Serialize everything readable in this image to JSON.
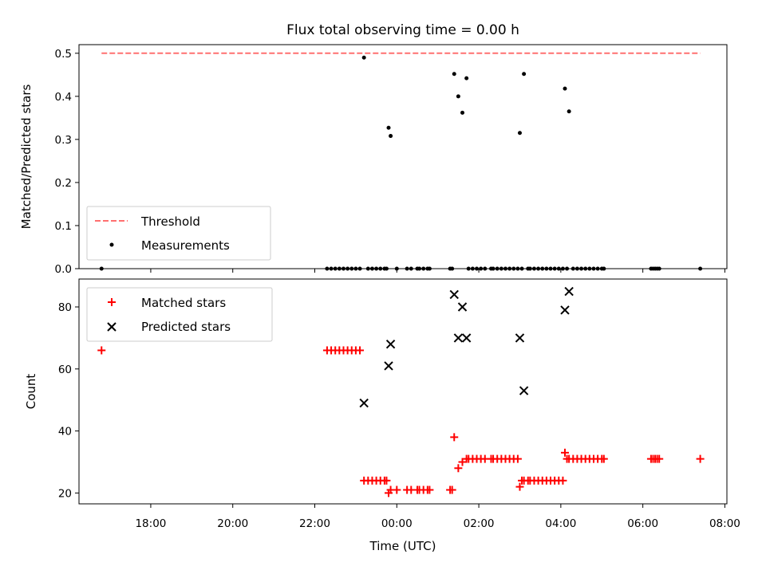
{
  "chart_data": [
    {
      "type": "scatter",
      "title": "Flux total observing time = 0.00 h",
      "xlabel": "",
      "ylabel": "Matched/Predicted stars",
      "xlim": [
        16.25,
        32.05
      ],
      "ylim": [
        0,
        0.52
      ],
      "yticks": [
        0.0,
        0.1,
        0.2,
        0.3,
        0.4,
        0.5
      ],
      "ytick_labels": [
        "0.0",
        "0.1",
        "0.2",
        "0.3",
        "0.4",
        "0.5"
      ],
      "legend_location": "lower left",
      "threshold": {
        "name": "Threshold",
        "color": "#ff7070",
        "x": [
          16.8,
          31.4
        ],
        "y": 0.5
      },
      "series": [
        {
          "name": "Measurements",
          "color": "#000000",
          "marker": "dot",
          "x": [
            16.8,
            22.3,
            22.4,
            22.5,
            22.6,
            22.7,
            22.8,
            22.9,
            23.0,
            23.1,
            23.2,
            23.3,
            23.4,
            23.5,
            23.6,
            23.7,
            23.75,
            23.8,
            23.85,
            24.0,
            24.25,
            24.35,
            24.5,
            24.55,
            24.65,
            24.75,
            24.8,
            25.3,
            25.35,
            25.4,
            25.5,
            25.6,
            25.7,
            25.75,
            25.85,
            25.95,
            26.05,
            26.15,
            26.3,
            26.35,
            26.45,
            26.55,
            26.65,
            26.75,
            26.85,
            26.95,
            27.0,
            27.05,
            27.1,
            27.2,
            27.25,
            27.35,
            27.45,
            27.55,
            27.65,
            27.75,
            27.85,
            27.95,
            28.05,
            28.1,
            28.15,
            28.2,
            28.3,
            28.4,
            28.5,
            28.6,
            28.7,
            28.8,
            28.9,
            29.0,
            29.05,
            30.2,
            30.25,
            30.3,
            30.35,
            30.4,
            31.4
          ],
          "y": [
            0.0,
            0.0,
            0.0,
            0.0,
            0.0,
            0.0,
            0.0,
            0.0,
            0.0,
            0.0,
            0.49,
            0.0,
            0.0,
            0.0,
            0.0,
            0.0,
            0.0,
            0.327,
            0.308,
            0.0,
            0.0,
            0.0,
            0.0,
            0.0,
            0.0,
            0.0,
            0.0,
            0.0,
            0.0,
            0.452,
            0.4,
            0.362,
            0.442,
            0.0,
            0.0,
            0.0,
            0.0,
            0.0,
            0.0,
            0.0,
            0.0,
            0.0,
            0.0,
            0.0,
            0.0,
            0.0,
            0.315,
            0.0,
            0.452,
            0.0,
            0.0,
            0.0,
            0.0,
            0.0,
            0.0,
            0.0,
            0.0,
            0.0,
            0.0,
            0.418,
            0.0,
            0.365,
            0.0,
            0.0,
            0.0,
            0.0,
            0.0,
            0.0,
            0.0,
            0.0,
            0.0,
            0.0,
            0.0,
            0.0,
            0.0,
            0.0,
            0.0
          ]
        }
      ]
    },
    {
      "type": "scatter",
      "title": "",
      "xlabel": "Time (UTC)",
      "ylabel": "Count",
      "xlim": [
        16.25,
        32.05
      ],
      "ylim": [
        16.5,
        89
      ],
      "xticks": [
        18,
        20,
        22,
        24,
        26,
        28,
        30,
        32
      ],
      "xtick_labels": [
        "18:00",
        "20:00",
        "22:00",
        "00:00",
        "02:00",
        "04:00",
        "06:00",
        "08:00"
      ],
      "yticks": [
        20,
        40,
        60,
        80
      ],
      "ytick_labels": [
        "20",
        "40",
        "60",
        "80"
      ],
      "legend_location": "upper left",
      "series": [
        {
          "name": "Matched stars",
          "color": "#ff0000",
          "marker": "plus",
          "x": [
            16.8,
            22.3,
            22.4,
            22.5,
            22.6,
            22.7,
            22.8,
            22.9,
            23.0,
            23.1,
            23.2,
            23.3,
            23.4,
            23.5,
            23.6,
            23.7,
            23.75,
            23.8,
            23.85,
            24.0,
            24.25,
            24.35,
            24.5,
            24.55,
            24.65,
            24.75,
            24.8,
            25.3,
            25.35,
            25.4,
            25.5,
            25.6,
            25.7,
            25.75,
            25.85,
            25.95,
            26.05,
            26.15,
            26.3,
            26.35,
            26.45,
            26.55,
            26.65,
            26.75,
            26.85,
            26.95,
            27.0,
            27.05,
            27.1,
            27.2,
            27.25,
            27.35,
            27.45,
            27.55,
            27.65,
            27.75,
            27.85,
            27.95,
            28.05,
            28.1,
            28.15,
            28.2,
            28.3,
            28.4,
            28.5,
            28.6,
            28.7,
            28.8,
            28.9,
            29.0,
            29.05,
            30.2,
            30.25,
            30.3,
            30.35,
            30.4,
            31.4
          ],
          "y": [
            66,
            66,
            66,
            66,
            66,
            66,
            66,
            66,
            66,
            66,
            24,
            24,
            24,
            24,
            24,
            24,
            24,
            20,
            21,
            21,
            21,
            21,
            21,
            21,
            21,
            21,
            21,
            21,
            21,
            38,
            28,
            30,
            31,
            31,
            31,
            31,
            31,
            31,
            31,
            31,
            31,
            31,
            31,
            31,
            31,
            31,
            22,
            24,
            24,
            24,
            24,
            24,
            24,
            24,
            24,
            24,
            24,
            24,
            24,
            33,
            31,
            31,
            31,
            31,
            31,
            31,
            31,
            31,
            31,
            31,
            31,
            31,
            31,
            31,
            31,
            31,
            31
          ]
        },
        {
          "name": "Predicted stars",
          "color": "#000000",
          "marker": "x",
          "x": [
            23.2,
            23.8,
            23.85,
            25.4,
            25.5,
            25.6,
            25.7,
            27.0,
            27.1,
            28.1,
            28.2
          ],
          "y": [
            49,
            61,
            68,
            84,
            70,
            80,
            70,
            70,
            53,
            79,
            85
          ]
        }
      ]
    }
  ]
}
